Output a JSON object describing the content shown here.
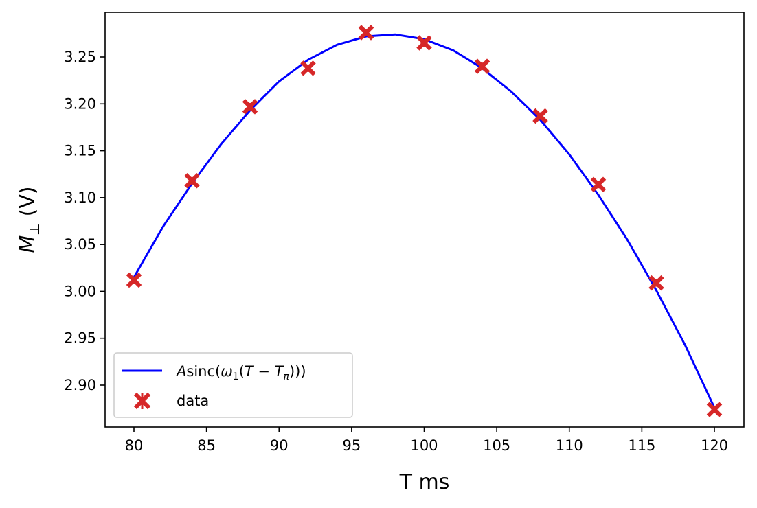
{
  "chart_data": {
    "type": "scatter",
    "xlabel": "T ms",
    "ylabel": "M⊥ (V)",
    "ylabel_parts": {
      "symbol": "M",
      "subscript": "⊥",
      "unit": "(V)"
    },
    "xlim": [
      78,
      122
    ],
    "ylim": [
      2.853,
      2.2953
    ],
    "ylim_note": "",
    "xticks": [
      80,
      85,
      90,
      95,
      100,
      105,
      110,
      115,
      120
    ],
    "xtick_labels": [
      "80",
      "85",
      "90",
      "95",
      "100",
      "105",
      "110",
      "115",
      "120"
    ],
    "yticks": [
      2.9,
      2.95,
      3.0,
      3.05,
      3.1,
      3.15,
      3.2,
      3.25
    ],
    "ytick_labels": [
      "2.90",
      "2.95",
      "3.00",
      "3.05",
      "3.10",
      "3.15",
      "3.20",
      "3.25"
    ],
    "grid": false,
    "legend_position": "lower-left",
    "series": [
      {
        "name": "Asinc(ω1(T − Tπ)))",
        "kind": "line",
        "color": "#0000ff",
        "x": [
          80,
          82,
          84,
          86,
          88,
          90,
          92,
          94,
          96,
          98,
          100,
          102,
          104,
          106,
          108,
          110,
          112,
          114,
          116,
          118,
          120
        ],
        "y": [
          3.015,
          3.069,
          3.115,
          3.157,
          3.193,
          3.224,
          3.247,
          3.263,
          3.272,
          3.274,
          3.269,
          3.257,
          3.238,
          3.213,
          3.183,
          3.146,
          3.103,
          3.055,
          3.001,
          2.942,
          2.876
        ]
      },
      {
        "name": "data",
        "kind": "errorbar-scatter",
        "marker": "X",
        "color": "#d62728",
        "x": [
          80,
          84,
          88,
          92,
          96,
          100,
          104,
          108,
          112,
          116,
          120
        ],
        "y": [
          3.012,
          3.118,
          3.197,
          3.238,
          3.276,
          3.265,
          3.24,
          3.187,
          3.114,
          3.009,
          2.874
        ],
        "yerr": [
          0.004,
          0.004,
          0.004,
          0.004,
          0.004,
          0.004,
          0.004,
          0.004,
          0.004,
          0.004,
          0.004
        ]
      }
    ],
    "legend": {
      "entries": [
        {
          "label_parts": [
            "A",
            "sinc(",
            "ω",
            "1",
            "(",
            "T",
            " − ",
            "T",
            "π",
            ")))"
          ]
        },
        {
          "label": "data"
        }
      ]
    }
  }
}
